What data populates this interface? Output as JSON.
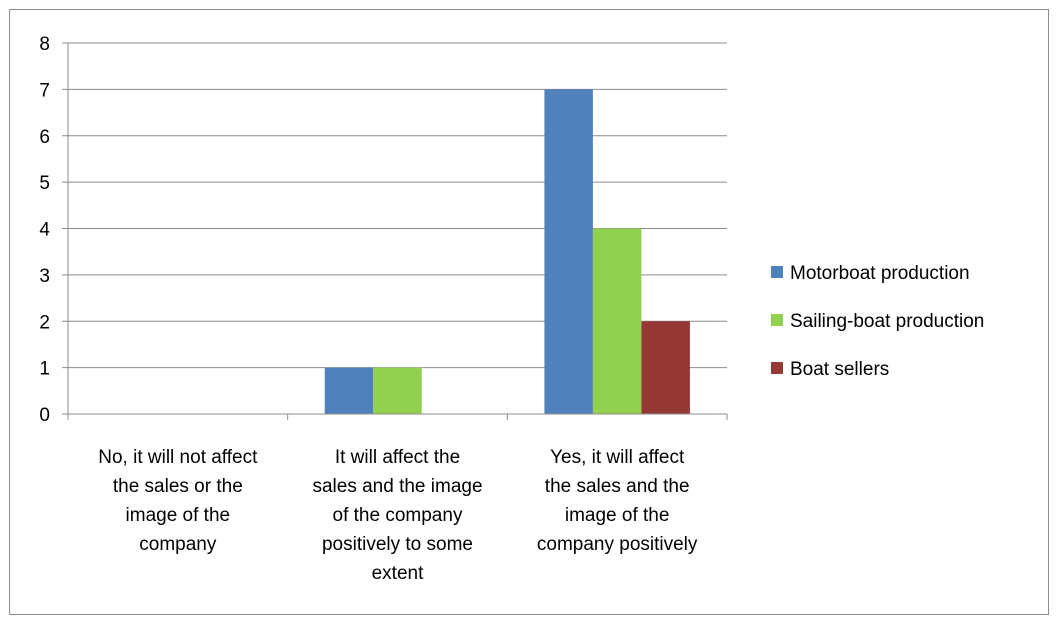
{
  "chart_data": {
    "type": "bar",
    "title": "",
    "xlabel": "",
    "ylabel": "",
    "ylim": [
      0,
      8
    ],
    "yticks": [
      0,
      1,
      2,
      3,
      4,
      5,
      6,
      7,
      8
    ],
    "grid": true,
    "legend_position": "right",
    "categories": [
      [
        "No, it will not affect",
        "the sales or the",
        "image of the",
        "company"
      ],
      [
        "It will affect the",
        "sales and the image",
        "of the company",
        "positively to some",
        "extent"
      ],
      [
        "Yes, it will affect",
        "the sales and the",
        "image of the",
        "company positively"
      ]
    ],
    "series": [
      {
        "name": "Motorboat production",
        "color": "#4f81bd",
        "values": [
          0,
          1,
          7
        ]
      },
      {
        "name": "Sailing-boat production",
        "color": "#92d050",
        "values": [
          0,
          1,
          4
        ]
      },
      {
        "name": "Boat sellers",
        "color": "#953735",
        "values": [
          0,
          0,
          2
        ]
      }
    ]
  }
}
